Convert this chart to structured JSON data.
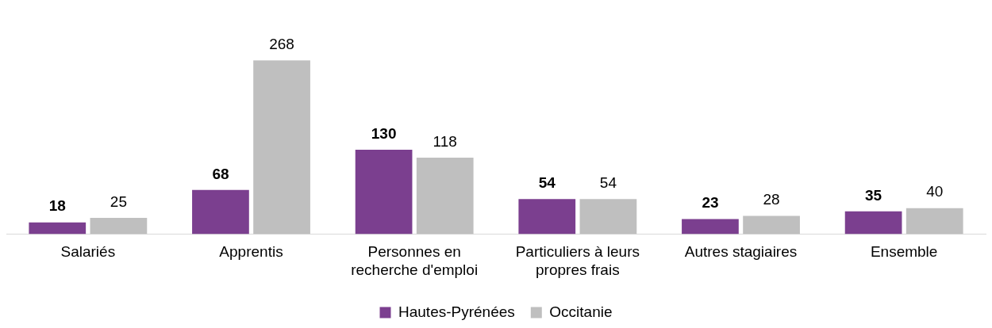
{
  "chart_data": {
    "type": "bar",
    "categories": [
      "Salariés",
      "Apprentis",
      "Personnes en recherche d'emploi",
      "Particuliers à leurs propres frais",
      "Autres stagiaires",
      "Ensemble"
    ],
    "series": [
      {
        "name": "Hautes-Pyrénées",
        "color": "#7b3f8f",
        "values": [
          18,
          68,
          130,
          54,
          23,
          35
        ]
      },
      {
        "name": "Occitanie",
        "color": "#bfbfbf",
        "values": [
          25,
          268,
          118,
          54,
          28,
          40
        ]
      }
    ],
    "data_labels": true,
    "legend": "bottom",
    "grid": false
  }
}
